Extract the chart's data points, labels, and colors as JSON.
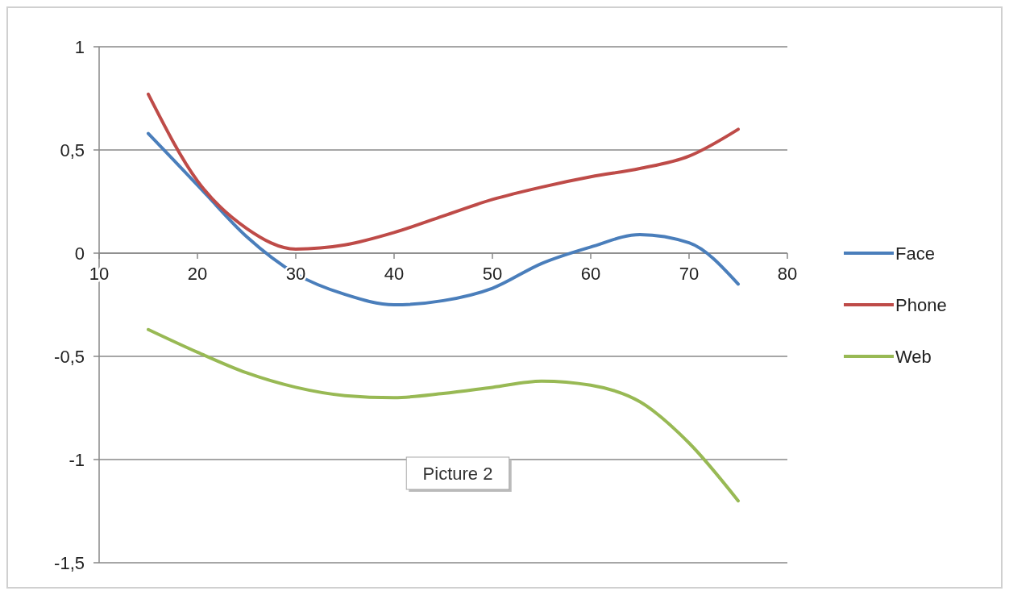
{
  "chart_data": {
    "type": "line",
    "x": [
      15,
      20,
      25,
      30,
      35,
      40,
      45,
      50,
      55,
      60,
      65,
      70,
      75
    ],
    "series": [
      {
        "name": "Face",
        "color": "#4a7ebb",
        "values": [
          0.58,
          0.33,
          0.08,
          -0.1,
          -0.2,
          -0.25,
          -0.23,
          -0.17,
          -0.05,
          0.03,
          0.09,
          0.05,
          -0.15
        ]
      },
      {
        "name": "Phone",
        "color": "#be4b48",
        "values": [
          0.77,
          0.35,
          0.12,
          0.02,
          0.04,
          0.1,
          0.18,
          0.26,
          0.32,
          0.37,
          0.41,
          0.47,
          0.6
        ]
      },
      {
        "name": "Web",
        "color": "#98b954",
        "values": [
          -0.37,
          -0.48,
          -0.58,
          -0.65,
          -0.69,
          -0.7,
          -0.68,
          -0.65,
          -0.62,
          -0.64,
          -0.72,
          -0.92,
          -1.2
        ]
      }
    ],
    "xlim": [
      10,
      80
    ],
    "xticks": [
      10,
      20,
      30,
      40,
      50,
      60,
      70,
      80
    ],
    "ylim": [
      -1.5,
      1
    ],
    "yticks": [
      {
        "value": -1.5,
        "label": "-1,5"
      },
      -1,
      {
        "value": -0.5,
        "label": "-0,5"
      },
      0,
      {
        "value": 0.5,
        "label": "0,5"
      },
      1
    ],
    "grid": "y",
    "legend": "right",
    "marker": "none",
    "line_style": "solid",
    "annotations": [
      "Picture 2"
    ]
  }
}
